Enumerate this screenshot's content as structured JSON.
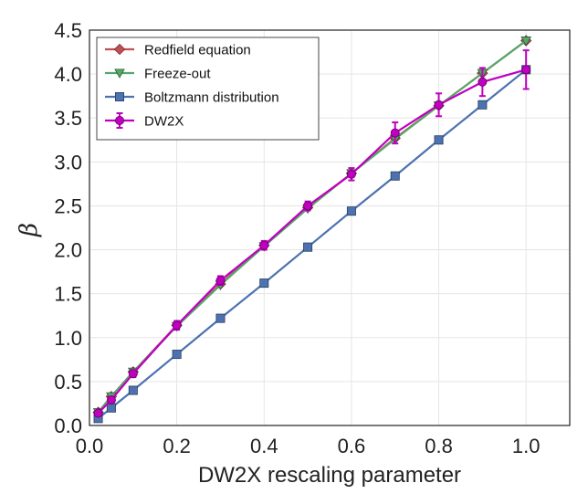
{
  "chart_data": {
    "type": "line",
    "title": "",
    "xlabel": "DW2X rescaling parameter",
    "ylabel": "β",
    "xlim": [
      0.0,
      1.1
    ],
    "ylim": [
      0.0,
      4.5
    ],
    "xticks": [
      0.0,
      0.2,
      0.4,
      0.6,
      0.8,
      1.0
    ],
    "xtick_labels": [
      "0.0",
      "0.2",
      "0.4",
      "0.6",
      "0.8",
      "1.0"
    ],
    "yticks": [
      0.0,
      0.5,
      1.0,
      1.5,
      2.0,
      2.5,
      3.0,
      3.5,
      4.0,
      4.5
    ],
    "ytick_labels": [
      "0.0",
      "0.5",
      "1.0",
      "1.5",
      "2.0",
      "2.5",
      "3.0",
      "3.5",
      "4.0",
      "4.5"
    ],
    "grid": true,
    "legend_position": "top-left",
    "series": [
      {
        "name": "Redfield equation",
        "color": "#c44e52",
        "marker": "diamond",
        "x": [
          0.02,
          0.05,
          0.1,
          0.2,
          0.3,
          0.4,
          0.5,
          0.6,
          0.7,
          0.8,
          0.9,
          1.0
        ],
        "y": [
          0.15,
          0.33,
          0.61,
          1.14,
          1.61,
          2.05,
          2.48,
          2.87,
          3.27,
          3.64,
          4.01,
          4.38
        ]
      },
      {
        "name": "Freeze-out",
        "color": "#55a868",
        "marker": "triangle-down",
        "x": [
          0.02,
          0.05,
          0.1,
          0.2,
          0.3,
          0.4,
          0.5,
          0.6,
          0.7,
          0.8,
          0.9,
          1.0
        ],
        "y": [
          0.15,
          0.33,
          0.61,
          1.13,
          1.6,
          2.04,
          2.47,
          2.87,
          3.26,
          3.64,
          4.01,
          4.38
        ]
      },
      {
        "name": "Boltzmann distribution",
        "color": "#4c72b0",
        "marker": "square",
        "x": [
          0.02,
          0.05,
          0.1,
          0.2,
          0.3,
          0.4,
          0.5,
          0.6,
          0.7,
          0.8,
          0.9,
          1.0
        ],
        "y": [
          0.08,
          0.2,
          0.4,
          0.81,
          1.22,
          1.62,
          2.03,
          2.44,
          2.84,
          3.25,
          3.65,
          4.05
        ]
      },
      {
        "name": "DW2X",
        "color": "#bf00bf",
        "marker": "circle",
        "x": [
          0.02,
          0.05,
          0.1,
          0.2,
          0.3,
          0.4,
          0.5,
          0.6,
          0.7,
          0.8,
          0.9,
          1.0
        ],
        "y": [
          0.14,
          0.29,
          0.59,
          1.14,
          1.65,
          2.05,
          2.5,
          2.86,
          3.33,
          3.65,
          3.91,
          4.05
        ],
        "yerr": [
          0.02,
          0.03,
          0.04,
          0.05,
          0.05,
          0.05,
          0.05,
          0.07,
          0.12,
          0.13,
          0.16,
          0.22
        ]
      }
    ]
  }
}
